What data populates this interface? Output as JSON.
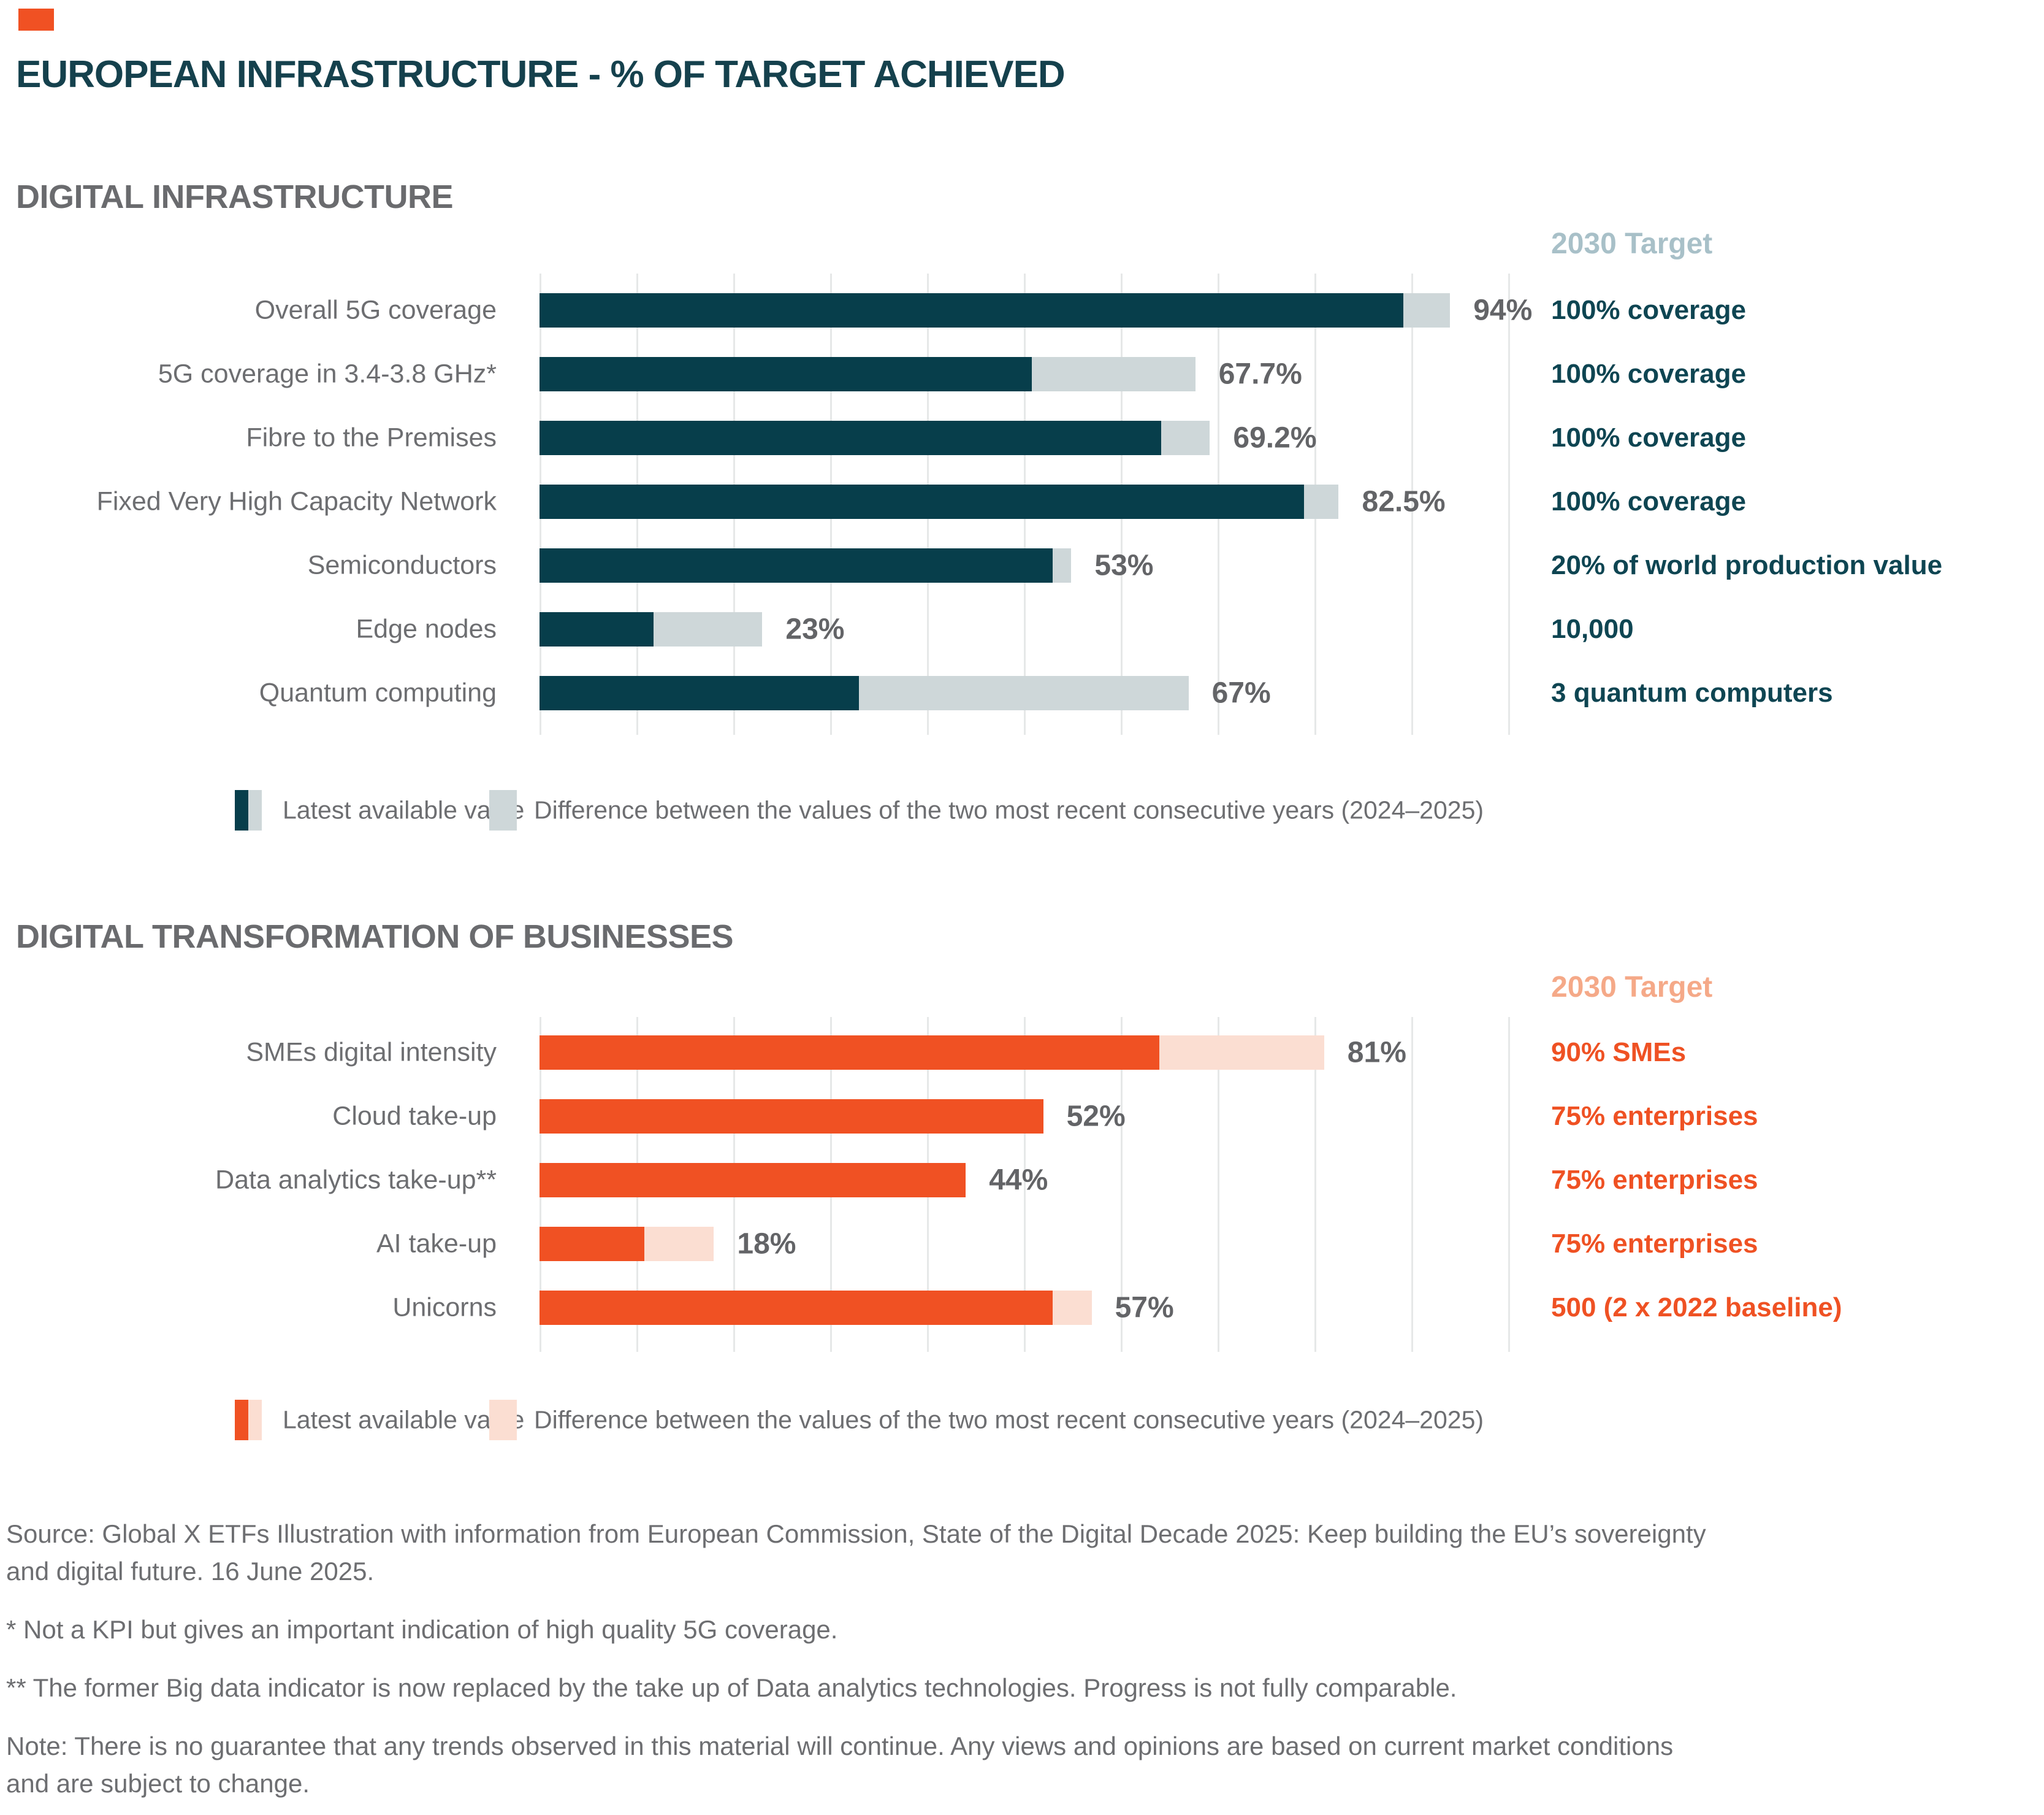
{
  "window": {
    "title": "EUROPEAN INFRASTRUCTURE - % OF TARGET ACHIEVED"
  },
  "colors": {
    "accent": "#F05123",
    "title_teal": "#15414D",
    "heading_gray": "#6A6B6E",
    "text_gray": "#6D6E71",
    "value_gray": "#636467",
    "gridline": "#E6E8E8",
    "teal_bar": "#073E4B",
    "teal_diff": "#CED7D9",
    "teal_target_header": "#A8C0C8",
    "orange_bar": "#F05123",
    "orange_diff": "#FBDED2",
    "orange_target_header": "#F5A988",
    "background": "#FFFFFF"
  },
  "legend": {
    "latest_label": "Latest available value",
    "diff_label": "Difference between the values of the two most recent consecutive years (2024–2025)"
  },
  "chart_data": [
    {
      "type": "bar",
      "orientation": "horizontal",
      "title": "DIGITAL INFRASTRUCTURE",
      "target_header": "2030 Target",
      "xlim": [
        0,
        100
      ],
      "gridlines": "vertical, every 10% of target achieved",
      "legend_position": "bottom",
      "colors": {
        "bar": "#073E4B",
        "diff": "#CED7D9",
        "target_text": "#0E4552",
        "target_header": "#A8C0C8"
      },
      "categories": [
        "Overall 5G coverage",
        "5G coverage in 3.4-3.8 GHz*",
        "Fibre to the Premises",
        "Fixed Very High Capacity Network",
        "Semiconductors",
        "Edge nodes",
        "Quantum computing"
      ],
      "series": [
        {
          "name": "Latest available value (% of target achieved)",
          "values": [
            94,
            67.7,
            69.2,
            82.5,
            53,
            23,
            67
          ]
        },
        {
          "name": "Difference between the values of the two most recent consecutive years (2024–2025), estimated from bars",
          "values": [
            4.8,
            16.9,
            5,
            3.6,
            1.9,
            11.2,
            34
          ]
        }
      ],
      "rows": [
        {
          "label": "Overall 5G coverage",
          "value": 94,
          "value_label": "94%",
          "diff": 4.8,
          "direction": "up",
          "target": "100% coverage"
        },
        {
          "label": "5G coverage in 3.4-3.8 GHz*",
          "value": 67.7,
          "value_label": "67.7%",
          "diff": 16.9,
          "direction": "up",
          "target": "100% coverage"
        },
        {
          "label": "Fibre to the Premises",
          "value": 69.2,
          "value_label": "69.2%",
          "diff": 5,
          "direction": "up",
          "target": "100% coverage"
        },
        {
          "label": "Fixed Very High Capacity Network",
          "value": 82.5,
          "value_label": "82.5%",
          "diff": 3.6,
          "direction": "up",
          "target": "100% coverage"
        },
        {
          "label": "Semiconductors",
          "value": 53,
          "value_label": "53%",
          "diff": 1.9,
          "direction": "down",
          "target": "20% of world production value"
        },
        {
          "label": "Edge nodes",
          "value": 23,
          "value_label": "23%",
          "diff": 11.2,
          "direction": "up",
          "target": "10,000"
        },
        {
          "label": "Quantum computing",
          "value": 67,
          "value_label": "67%",
          "diff": 34,
          "direction": "up",
          "target": "3 quantum computers"
        }
      ]
    },
    {
      "type": "bar",
      "orientation": "horizontal",
      "title": "DIGITAL TRANSFORMATION OF BUSINESSES",
      "target_header": "2030 Target",
      "xlim": [
        0,
        100
      ],
      "gridlines": "vertical, every 10% of target achieved",
      "legend_position": "bottom",
      "colors": {
        "bar": "#F05123",
        "diff": "#FBDED2",
        "target_text": "#EF5123",
        "target_header": "#F5A988"
      },
      "categories": [
        "SMEs digital intensity",
        "Cloud take-up",
        "Data analytics take-up**",
        "AI take-up",
        "Unicorns"
      ],
      "series": [
        {
          "name": "Latest available value (% of target achieved)",
          "values": [
            81,
            52,
            44,
            18,
            57
          ]
        },
        {
          "name": "Difference between the values of the two most recent consecutive years (2024–2025), estimated from bars",
          "values": [
            17,
            0,
            0,
            7.2,
            4
          ]
        }
      ],
      "rows": [
        {
          "label": "SMEs digital intensity",
          "value": 81,
          "value_label": "81%",
          "diff": 17,
          "direction": "up",
          "target": "90% SMEs"
        },
        {
          "label": "Cloud take-up",
          "value": 52,
          "value_label": "52%",
          "diff": 0,
          "direction": "up",
          "target": "75% enterprises"
        },
        {
          "label": "Data analytics take-up**",
          "value": 44,
          "value_label": "44%",
          "diff": 0,
          "direction": "up",
          "target": "75% enterprises"
        },
        {
          "label": "AI take-up",
          "value": 18,
          "value_label": "18%",
          "diff": 7.2,
          "direction": "up",
          "target": "75% enterprises"
        },
        {
          "label": "Unicorns",
          "value": 57,
          "value_label": "57%",
          "diff": 4,
          "direction": "up",
          "target": "500 (2 x 2022 baseline)"
        }
      ]
    }
  ],
  "footnotes": {
    "blocks": [
      {
        "lines": [
          "Source: Global X ETFs Illustration with information from European Commission, State of the Digital Decade 2025: Keep building the EU’s sovereignty",
          "and digital future. 16 June 2025."
        ]
      },
      {
        "lines": [
          "* Not a KPI but gives an important indication of high quality 5G coverage."
        ]
      },
      {
        "lines": [
          "** The former Big data indicator is now replaced by the take up of Data analytics technologies. Progress is not fully comparable."
        ]
      },
      {
        "lines": [
          "Note: There is no guarantee that any trends observed in this material will continue. Any views and opinions are based on current market conditions",
          "and are subject to change."
        ]
      }
    ]
  }
}
